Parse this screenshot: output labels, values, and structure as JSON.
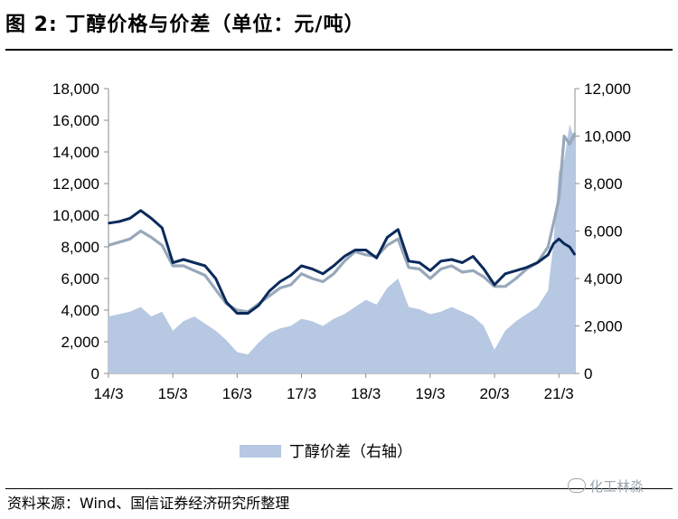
{
  "title": "图 2:  丁醇价格与价差（单位：元/吨）",
  "source": "资料来源：Wind、国信证券经济研究所整理",
  "watermark": "化工林淼",
  "chart_data": {
    "type": "line+area",
    "title": "丁醇价格与价差（单位：元/吨）",
    "x_tick_labels": [
      "14/3",
      "15/3",
      "16/3",
      "17/3",
      "18/3",
      "19/3",
      "20/3",
      "21/3"
    ],
    "x_range": [
      "2014-03",
      "2021-06"
    ],
    "y_left": {
      "range": [
        0,
        18000
      ],
      "ticks": [
        "0",
        "2,000",
        "4,000",
        "6,000",
        "8,000",
        "10,000",
        "12,000",
        "14,000",
        "16,000",
        "18,000"
      ]
    },
    "y_right": {
      "range": [
        0,
        12000
      ],
      "ticks": [
        "0",
        "2,000",
        "4,000",
        "6,000",
        "8,000",
        "10,000",
        "12,000"
      ]
    },
    "legend": {
      "placement": "bottom",
      "entries": [
        "丁醇价差（右轴）"
      ]
    },
    "colors": {
      "navy": "#0b2a5b",
      "gray": "#98a8ba",
      "spread": "#b6c8e2"
    },
    "x": [
      "2014-03",
      "2014-05",
      "2014-07",
      "2014-09",
      "2014-11",
      "2015-01",
      "2015-03",
      "2015-05",
      "2015-07",
      "2015-09",
      "2015-11",
      "2016-01",
      "2016-03",
      "2016-05",
      "2016-07",
      "2016-09",
      "2016-11",
      "2017-01",
      "2017-03",
      "2017-05",
      "2017-07",
      "2017-09",
      "2017-11",
      "2018-01",
      "2018-03",
      "2018-05",
      "2018-07",
      "2018-09",
      "2018-11",
      "2019-01",
      "2019-03",
      "2019-05",
      "2019-07",
      "2019-09",
      "2019-11",
      "2020-01",
      "2020-03",
      "2020-05",
      "2020-07",
      "2020-09",
      "2020-11",
      "2021-01",
      "2021-02",
      "2021-03",
      "2021-04",
      "2021-05",
      "2021-06"
    ],
    "series": [
      {
        "axis": "left",
        "style": "line",
        "color": "navy",
        "values": [
          9500,
          9600,
          9800,
          10300,
          9800,
          9200,
          7000,
          7200,
          7000,
          6800,
          6000,
          4500,
          3800,
          3800,
          4300,
          5200,
          5800,
          6200,
          6800,
          6600,
          6300,
          6800,
          7400,
          7800,
          7800,
          7300,
          8600,
          9100,
          7100,
          7000,
          6500,
          7100,
          7200,
          7000,
          7400,
          6600,
          5600,
          6300,
          6500,
          6700,
          7000,
          7500,
          8200,
          8500,
          8200,
          8000,
          7500
        ]
      },
      {
        "axis": "left",
        "style": "line",
        "color": "gray",
        "values": [
          8100,
          8300,
          8500,
          9000,
          8600,
          8100,
          6800,
          6800,
          6500,
          6200,
          5300,
          4400,
          4000,
          3900,
          4400,
          4900,
          5400,
          5600,
          6300,
          6000,
          5800,
          6300,
          7100,
          7700,
          7500,
          7400,
          8100,
          8500,
          6700,
          6600,
          6000,
          6600,
          6800,
          6400,
          6500,
          6100,
          5500,
          5500,
          6000,
          6600,
          7000,
          8000,
          9500,
          11000,
          15000,
          14500,
          15200
        ]
      },
      {
        "axis": "right",
        "style": "area",
        "color": "spread",
        "name": "丁醇价差（右轴）",
        "values": [
          2400,
          2500,
          2600,
          2800,
          2400,
          2600,
          1800,
          2200,
          2400,
          2100,
          1800,
          1400,
          900,
          800,
          1300,
          1700,
          1900,
          2000,
          2300,
          2200,
          2000,
          2300,
          2500,
          2800,
          3100,
          2900,
          3600,
          4000,
          2800,
          2700,
          2500,
          2600,
          2800,
          2600,
          2400,
          2000,
          1000,
          1800,
          2200,
          2500,
          2800,
          3500,
          5500,
          8500,
          9000,
          10500,
          9800
        ]
      }
    ]
  }
}
